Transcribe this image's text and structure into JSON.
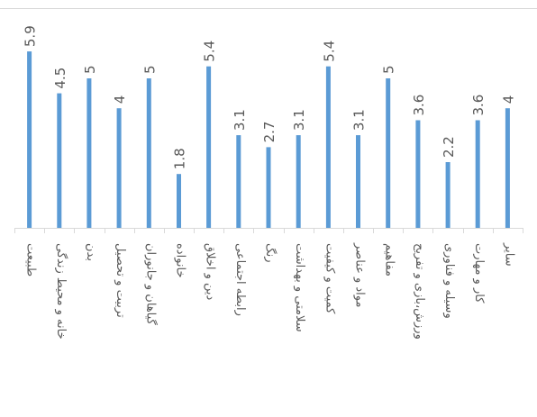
{
  "chart_data": {
    "type": "bar",
    "orientation": "vertical",
    "title": "",
    "xlabel": "",
    "ylabel": "",
    "ylim": [
      0,
      6
    ],
    "grid": false,
    "legend": "none",
    "data_labels": true,
    "bar_color": "#5b9bd5",
    "categories": [
      "طبیعت",
      "خانه و محیط زندگی",
      "بدن",
      "تربیت و تحصیل",
      "گیاهان و جانوران",
      "خانواده",
      "دین و اخلاق",
      "رابطه اجتماعی",
      "رنگ",
      "سلامتی و بهداشت",
      "کمیت و کیفیت",
      "مواد و عناصر",
      "مفاهیم",
      "ورزش،بازی و تفریح",
      "وسیله و فناوری",
      "کار و مهارت",
      "سایر"
    ],
    "values": [
      5.9,
      4.5,
      5,
      4,
      5,
      1.8,
      5.4,
      3.1,
      2.7,
      3.1,
      5.4,
      3.1,
      5,
      3.6,
      2.2,
      3.6,
      4
    ],
    "value_labels": [
      "5.9",
      "4.5",
      "5",
      "4",
      "5",
      "1.8",
      "5.4",
      "3.1",
      "2.7",
      "3.1",
      "5.4",
      "3.1",
      "5",
      "3.6",
      "2.2",
      "3.6",
      "4"
    ]
  }
}
